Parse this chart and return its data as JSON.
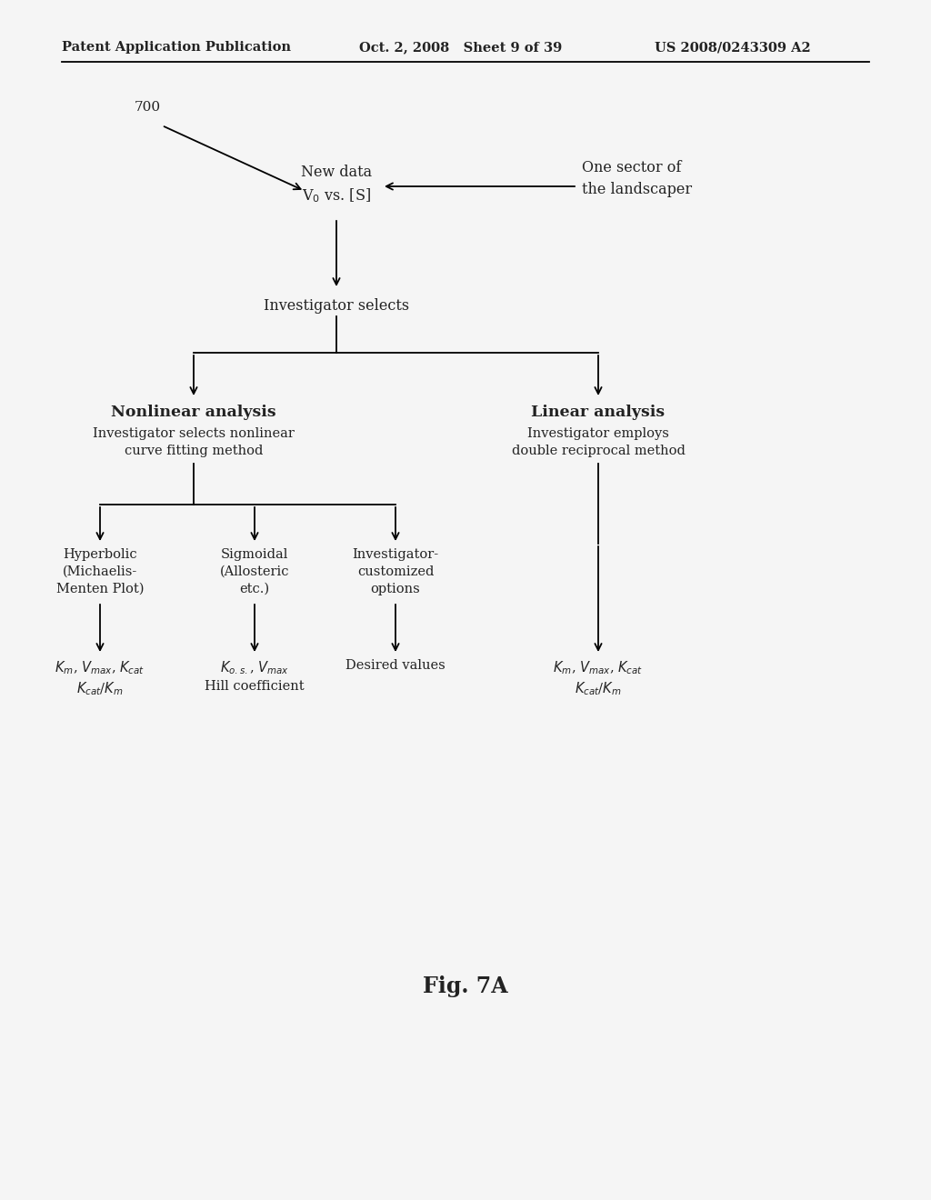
{
  "bg_color": "#f5f5f5",
  "header_left": "Patent Application Publication",
  "header_mid": "Oct. 2, 2008   Sheet 9 of 39",
  "header_right": "US 2008/0243309 A2",
  "fig_label": "Fig. 7A",
  "label_700": "700",
  "font_size_header": 10.5,
  "font_size_node": 11.5,
  "font_size_bold": 12.5,
  "font_size_small": 10.5,
  "font_size_700": 11,
  "font_size_fig": 17
}
